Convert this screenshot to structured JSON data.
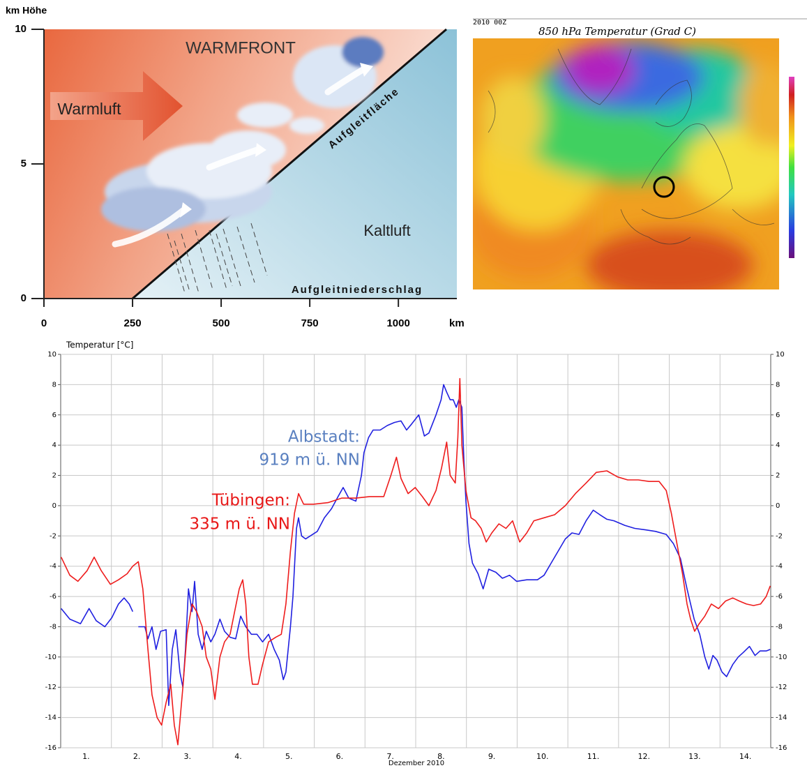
{
  "chart_data": [
    {
      "type": "diagram",
      "ylabel": "km Höhe",
      "xlabel": "km",
      "xlim": [
        0,
        1165
      ],
      "ylim": [
        0,
        10
      ],
      "xticks": [
        0,
        250,
        500,
        750,
        1000
      ],
      "yticks": [
        0,
        5,
        10
      ],
      "annotations": [
        "WARMFRONT",
        "Warmluft",
        "Aufgleitfläche",
        "Kaltluft",
        "Aufgleitniederschlag"
      ]
    },
    {
      "type": "map",
      "title": "850 hPa Temperatur (Grad C)",
      "subtitle": "2010 00Z"
    },
    {
      "type": "line",
      "ylabel": "Temperatur [°C]",
      "xlabel": "Dezember 2010",
      "xlim": [
        1,
        15
      ],
      "ylim": [
        -16,
        10
      ],
      "yticks": [
        -16,
        -14,
        -12,
        -10,
        -8,
        -6,
        -4,
        -2,
        0,
        2,
        4,
        6,
        8,
        10
      ],
      "xticks": [
        {
          "value": 1.5,
          "label": "1."
        },
        {
          "value": 2.5,
          "label": "2."
        },
        {
          "value": 3.5,
          "label": "3."
        },
        {
          "value": 4.5,
          "label": "4."
        },
        {
          "value": 5.5,
          "label": "5."
        },
        {
          "value": 6.5,
          "label": "6."
        },
        {
          "value": 7.5,
          "label": "7."
        },
        {
          "value": 8.5,
          "label": "8."
        },
        {
          "value": 9.5,
          "label": "9."
        },
        {
          "value": 10.5,
          "label": "10."
        },
        {
          "value": 11.5,
          "label": "11."
        },
        {
          "value": 12.5,
          "label": "12."
        },
        {
          "value": 13.5,
          "label": "13."
        },
        {
          "value": 14.5,
          "label": "14."
        }
      ],
      "grid": true,
      "series": [
        {
          "name": "Albstadt:",
          "annotation": "919 m ü. NN",
          "color": "#2020e0",
          "label_color": "#5a80c0",
          "x": [
            1.01,
            1.18,
            1.39,
            1.56,
            1.7,
            1.87,
            2.01,
            2.14,
            2.25,
            2.35,
            2.42,
            2.47,
            2.53,
            2.66,
            2.72,
            2.8,
            2.88,
            2.97,
            3.08,
            3.13,
            3.2,
            3.27,
            3.35,
            3.41,
            3.46,
            3.52,
            3.59,
            3.64,
            3.71,
            3.79,
            3.87,
            3.96,
            4.04,
            4.14,
            4.23,
            4.34,
            4.45,
            4.55,
            4.65,
            4.76,
            4.87,
            4.98,
            5.1,
            5.21,
            5.31,
            5.39,
            5.44,
            5.53,
            5.58,
            5.65,
            5.69,
            5.75,
            5.83,
            5.92,
            6.06,
            6.2,
            6.34,
            6.47,
            6.57,
            6.68,
            6.82,
            6.93,
            6.98,
            7.07,
            7.16,
            7.3,
            7.44,
            7.58,
            7.71,
            7.82,
            7.92,
            8.06,
            8.17,
            8.26,
            8.4,
            8.5,
            8.55,
            8.61,
            8.68,
            8.74,
            8.8,
            8.85,
            8.91,
            8.95,
            8.99,
            9.05,
            9.12,
            9.23,
            9.33,
            9.44,
            9.58,
            9.71,
            9.85,
            9.99,
            10.19,
            10.4,
            10.53,
            10.67,
            10.81,
            10.95,
            11.08,
            11.22,
            11.36,
            11.5,
            11.63,
            11.77,
            11.91,
            12.12,
            12.32,
            12.53,
            12.73,
            12.94,
            13.08,
            13.22,
            13.35,
            13.49,
            13.6,
            13.7,
            13.78,
            13.86,
            13.94,
            14.04,
            14.13,
            14.25,
            14.36,
            14.46,
            14.58,
            14.69,
            14.79,
            14.91,
            14.99
          ],
          "values": [
            -6.8,
            -7.5,
            -7.8,
            -6.8,
            -7.6,
            -8.0,
            -7.4,
            -6.5,
            -6.1,
            -6.5,
            -7.0,
            null,
            -8.0,
            -8.0,
            -8.8,
            -8.0,
            -9.5,
            -8.3,
            -8.2,
            -13.2,
            -9.5,
            -8.2,
            -11.0,
            -12.0,
            -9.5,
            -5.5,
            -7.0,
            -5.0,
            -8.5,
            -9.5,
            -8.3,
            -9.0,
            -8.5,
            -7.5,
            -8.3,
            -8.7,
            -8.8,
            -7.3,
            -8.0,
            -8.5,
            -8.5,
            -9.0,
            -8.5,
            -9.5,
            -10.2,
            -11.5,
            -11.0,
            -8.0,
            -6.0,
            -1.5,
            -0.8,
            -2.0,
            -2.2,
            -2.0,
            -1.7,
            -0.8,
            -0.2,
            0.6,
            1.2,
            0.5,
            0.3,
            2.0,
            3.5,
            4.5,
            5.0,
            5.0,
            5.3,
            5.5,
            5.6,
            5.0,
            5.4,
            6.0,
            4.6,
            4.8,
            6.0,
            7.0,
            8.0,
            7.5,
            7.0,
            7.0,
            6.5,
            7.0,
            6.5,
            3.0,
            0.3,
            -2.5,
            -3.8,
            -4.5,
            -5.5,
            -4.2,
            -4.4,
            -4.8,
            -4.6,
            -5.0,
            -4.9,
            -4.9,
            -4.6,
            -3.8,
            -3.0,
            -2.2,
            -1.8,
            -1.9,
            -1.0,
            -0.3,
            -0.6,
            -0.9,
            -1.0,
            -1.3,
            -1.5,
            -1.6,
            -1.7,
            -1.9,
            -2.5,
            -3.5,
            -5.5,
            -7.5,
            -8.5,
            -10.0,
            -10.8,
            -9.9,
            -10.2,
            -11.0,
            -11.3,
            -10.5,
            -10.0,
            -9.7,
            -9.3,
            -9.9,
            -9.6,
            -9.6,
            -9.5
          ]
        },
        {
          "name": "Tübingen:",
          "annotation": "335 m ü. NN",
          "color": "#ee1c1c",
          "label_color": "#e81818",
          "x": [
            1.01,
            1.18,
            1.34,
            1.52,
            1.66,
            1.8,
            1.98,
            2.14,
            2.31,
            2.42,
            2.53,
            2.62,
            2.72,
            2.8,
            2.9,
            2.99,
            3.08,
            3.17,
            3.24,
            3.31,
            3.41,
            3.49,
            3.59,
            3.68,
            3.79,
            3.87,
            3.96,
            4.04,
            4.14,
            4.23,
            4.34,
            4.43,
            4.52,
            4.59,
            4.65,
            4.71,
            4.78,
            4.89,
            4.98,
            5.1,
            5.24,
            5.35,
            5.44,
            5.53,
            5.61,
            5.69,
            5.79,
            5.99,
            6.27,
            6.54,
            6.82,
            7.09,
            7.37,
            7.51,
            7.62,
            7.71,
            7.85,
            7.99,
            8.13,
            8.26,
            8.4,
            8.51,
            8.61,
            8.68,
            8.78,
            8.83,
            8.87,
            8.91,
            8.99,
            9.09,
            9.18,
            9.29,
            9.39,
            9.5,
            9.64,
            9.78,
            9.91,
            10.05,
            10.19,
            10.33,
            10.53,
            10.74,
            10.95,
            11.15,
            11.36,
            11.56,
            11.77,
            11.98,
            12.18,
            12.39,
            12.6,
            12.8,
            12.94,
            13.04,
            13.15,
            13.26,
            13.35,
            13.42,
            13.5,
            13.59,
            13.7,
            13.83,
            13.97,
            14.11,
            14.25,
            14.38,
            14.52,
            14.66,
            14.8,
            14.91,
            14.99
          ],
          "values": [
            -3.4,
            -4.6,
            -5.0,
            -4.3,
            -3.4,
            -4.3,
            -5.2,
            -4.9,
            -4.5,
            -4.0,
            -3.7,
            -5.5,
            -9.5,
            -12.5,
            -14.0,
            -14.5,
            -13.0,
            -11.8,
            -14.5,
            -15.8,
            -12.0,
            -8.5,
            -6.5,
            -7.0,
            -8.0,
            -10.0,
            -10.8,
            -12.8,
            -10.0,
            -9.0,
            -8.5,
            -7.0,
            -5.5,
            -4.9,
            -6.5,
            -10.0,
            -11.8,
            -11.8,
            -10.5,
            -9.0,
            -8.7,
            -8.5,
            -6.5,
            -3.0,
            -0.5,
            0.8,
            0.1,
            0.1,
            0.2,
            0.5,
            0.5,
            0.6,
            0.6,
            2.0,
            3.2,
            1.8,
            0.8,
            1.2,
            0.6,
            0.0,
            1.0,
            2.5,
            4.2,
            2.0,
            1.5,
            4.5,
            8.4,
            4.0,
            1.0,
            -0.8,
            -1.0,
            -1.5,
            -2.4,
            -1.8,
            -1.2,
            -1.5,
            -1.0,
            -2.4,
            -1.8,
            -1.0,
            -0.8,
            -0.6,
            0.0,
            0.8,
            1.5,
            2.2,
            2.3,
            1.9,
            1.7,
            1.7,
            1.6,
            1.6,
            1.0,
            -0.5,
            -2.5,
            -4.5,
            -6.5,
            -7.5,
            -8.3,
            -7.8,
            -7.3,
            -6.5,
            -6.8,
            -6.3,
            -6.1,
            -6.3,
            -6.5,
            -6.6,
            -6.5,
            -6.0,
            -5.3
          ]
        }
      ]
    }
  ]
}
